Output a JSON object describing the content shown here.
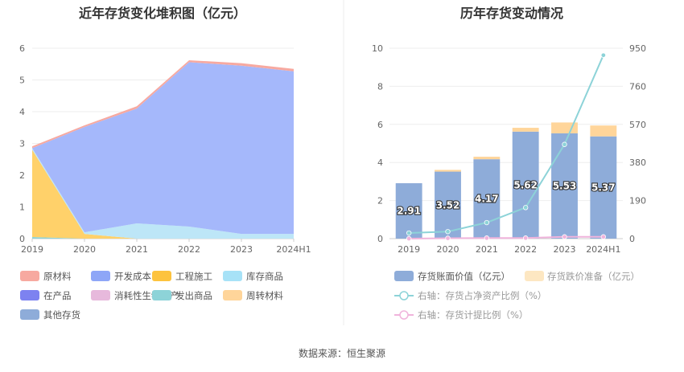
{
  "source_label": "数据来源：恒生聚源",
  "chart_data": [
    {
      "type": "area",
      "title": "近年存货变化堆积图（亿元）",
      "categories": [
        "2019",
        "2020",
        "2021",
        "2022",
        "2023",
        "2024H1"
      ],
      "ylim": [
        0,
        6
      ],
      "yticks": [
        "0",
        "1",
        "2",
        "3",
        "4",
        "5",
        "6"
      ],
      "legend_position": "bottom",
      "series": [
        {
          "name": "发出商品",
          "color": "#8dd3d8",
          "values": [
            0.05,
            0.0,
            0.0,
            0.0,
            0.0,
            0.0
          ]
        },
        {
          "name": "工程施工",
          "color": "#ffd16a",
          "values": [
            2.75,
            0.15,
            0.0,
            0.0,
            0.0,
            0.0
          ]
        },
        {
          "name": "库存商品",
          "color": "#bde6f7",
          "values": [
            0.05,
            0.05,
            0.48,
            0.38,
            0.15,
            0.15
          ]
        },
        {
          "name": "开发成本",
          "color": "#a5b8fb",
          "values": [
            0.0,
            3.32,
            3.62,
            5.18,
            5.3,
            5.12
          ]
        },
        {
          "name": "原材料",
          "color": "#f7a9a0",
          "values": [
            0.06,
            0.05,
            0.07,
            0.06,
            0.08,
            0.08
          ]
        },
        {
          "name": "在产品",
          "color": "#7d82f0",
          "values": [
            0,
            0,
            0,
            0,
            0,
            0
          ]
        },
        {
          "name": "消耗性生物资产",
          "color": "#e7b9dc",
          "values": [
            0,
            0,
            0,
            0,
            0,
            0
          ]
        },
        {
          "name": "周转材料",
          "color": "#ffd59a",
          "values": [
            0,
            0,
            0,
            0,
            0,
            0
          ]
        },
        {
          "name": "其他存货",
          "color": "#8eacd9",
          "values": [
            0,
            0,
            0,
            0,
            0,
            0
          ]
        }
      ],
      "legend": [
        {
          "name": "原材料",
          "color": "#f7a9a0"
        },
        {
          "name": "开发成本",
          "color": "#8ea6f7"
        },
        {
          "name": "工程施工",
          "color": "#fdc33e"
        },
        {
          "name": "库存商品",
          "color": "#a7e2f7"
        },
        {
          "name": "在产品",
          "color": "#7d82f0"
        },
        {
          "name": "消耗性生物资产",
          "color": "#e7b9dc"
        },
        {
          "name": "发出商品",
          "color": "#8dd3d8"
        },
        {
          "name": "周转材料",
          "color": "#ffd59a"
        },
        {
          "name": "其他存货",
          "color": "#8eacd9"
        }
      ]
    },
    {
      "type": "bar",
      "title": "历年存货变动情况",
      "categories": [
        "2019",
        "2020",
        "2021",
        "2022",
        "2023",
        "2024H1"
      ],
      "ylim": [
        0,
        10
      ],
      "yticks": [
        "0",
        "2",
        "4",
        "6",
        "8",
        "10"
      ],
      "y2lim": [
        0,
        950
      ],
      "y2ticks": [
        "0",
        "190",
        "380",
        "570",
        "760",
        "950"
      ],
      "legend_position": "bottom",
      "series": [
        {
          "name": "存货账面价值（亿元）",
          "color": "#8eacd9",
          "values": [
            2.91,
            3.52,
            4.17,
            5.62,
            5.53,
            5.37
          ],
          "labels": [
            "2.91",
            "3.52",
            "4.17",
            "5.62",
            "5.53",
            "5.37"
          ]
        },
        {
          "name": "存货跌价准备（亿元）",
          "color": "#ffd59a",
          "legend_color": "#fde7c2",
          "values": [
            0.0,
            0.09,
            0.13,
            0.2,
            0.57,
            0.57
          ]
        },
        {
          "name": "右轴：存货占净资产比例（%）",
          "color": "#8dd3d8",
          "axis": "right",
          "values": [
            28,
            35,
            80,
            155,
            470,
            915
          ]
        },
        {
          "name": "右轴：存货计提比例（%）",
          "color": "#f0b4dc",
          "axis": "right",
          "values": [
            0,
            2,
            3,
            3,
            9,
            9
          ]
        }
      ]
    }
  ]
}
